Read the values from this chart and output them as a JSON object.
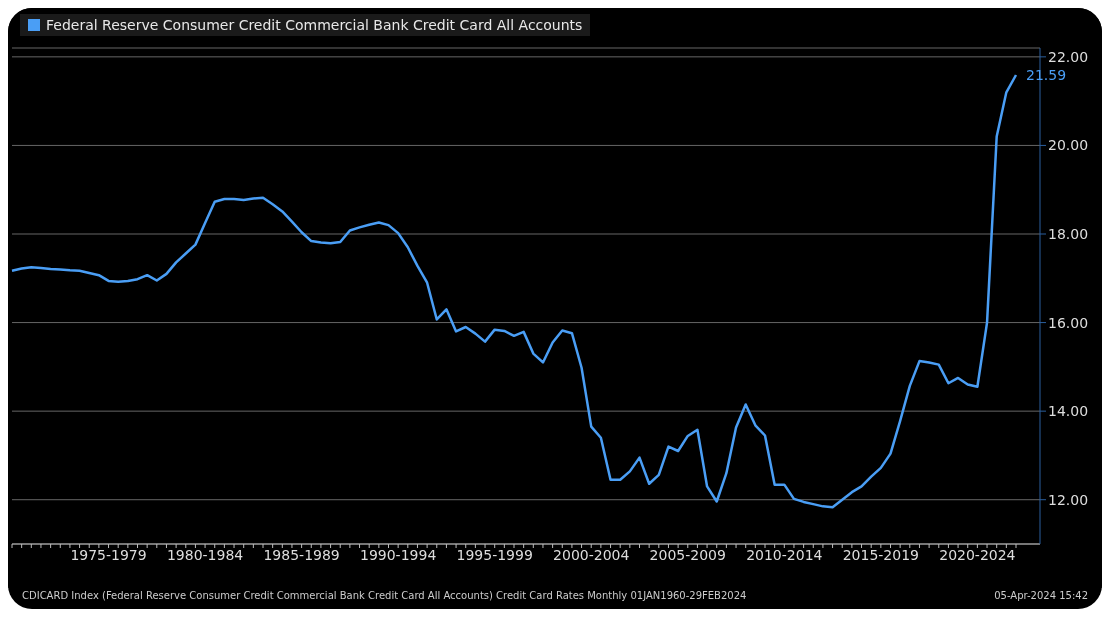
{
  "chart_data": {
    "type": "line",
    "legend": "top left",
    "grid": "y",
    "marker": "none",
    "line_style": "solid",
    "categories": [
      null,
      null,
      null,
      null,
      null,
      null,
      null,
      null,
      null,
      null,
      "1975-1979",
      null,
      null,
      null,
      null,
      null,
      null,
      null,
      null,
      null,
      "1980-1984",
      null,
      null,
      null,
      null,
      null,
      null,
      null,
      null,
      null,
      "1985-1989",
      null,
      null,
      null,
      null,
      null,
      null,
      null,
      null,
      null,
      "1990-1994",
      null,
      null,
      null,
      null,
      null,
      null,
      null,
      null,
      null,
      "1995-1999",
      null,
      null,
      null,
      null,
      null,
      null,
      null,
      null,
      null,
      "2000-2004",
      null,
      null,
      null,
      null,
      null,
      null,
      null,
      null,
      null,
      "2005-2009",
      null,
      null,
      null,
      null,
      null,
      null,
      null,
      null,
      null,
      "2010-2014",
      null,
      null,
      null,
      null,
      null,
      null,
      null,
      null,
      null,
      "2015-2019",
      null,
      null,
      null,
      null,
      null,
      null,
      null,
      null,
      null,
      "2020-2024",
      null,
      null,
      null,
      null
    ],
    "series": [
      {
        "name": "Federal Reserve Consumer Credit Commercial Bank Credit Card All Accounts",
        "color": "#4a9ef5",
        "values": [
          17.17,
          17.22,
          17.25,
          17.23,
          17.21,
          17.2,
          17.18,
          17.17,
          17.12,
          17.07,
          16.94,
          16.92,
          16.94,
          16.98,
          17.07,
          16.95,
          17.1,
          17.36,
          17.56,
          17.76,
          18.25,
          18.73,
          18.79,
          18.79,
          18.77,
          18.8,
          18.82,
          18.67,
          18.51,
          18.28,
          18.04,
          17.84,
          17.81,
          17.79,
          17.82,
          18.08,
          18.15,
          18.21,
          18.26,
          18.2,
          18.02,
          17.7,
          17.28,
          16.9,
          16.07,
          16.3,
          15.8,
          15.9,
          15.75,
          15.57,
          15.84,
          15.81,
          15.7,
          15.79,
          15.3,
          15.1,
          15.55,
          15.82,
          15.76,
          14.98,
          13.65,
          13.4,
          12.45,
          12.45,
          12.64,
          12.95,
          12.36,
          12.56,
          13.2,
          13.1,
          13.44,
          13.58,
          12.3,
          11.96,
          12.6,
          13.63,
          14.15,
          13.68,
          13.45,
          12.34,
          12.34,
          12.02,
          11.95,
          11.9,
          11.85,
          11.83,
          12.0,
          12.17,
          12.3,
          12.52,
          12.72,
          13.04,
          13.78,
          14.57,
          15.13,
          15.1,
          15.05,
          14.63,
          14.75,
          14.6,
          14.55,
          16.0,
          20.2,
          21.2,
          21.59
        ]
      }
    ],
    "ylim": [
      11,
      22.2
    ],
    "yticks": [
      {
        "value": 12,
        "label": "12.00"
      },
      {
        "value": 14,
        "label": "14.00"
      },
      {
        "value": 16,
        "label": "16.00"
      },
      {
        "value": 18,
        "label": "18.00"
      },
      {
        "value": 20,
        "label": "20.00"
      },
      {
        "value": 22,
        "label": "22.00"
      }
    ],
    "annotations": [
      "21.59",
      "CDICARD Index (Federal Reserve Consumer Credit Commercial Bank Credit Card All Accounts) Credit Card Rates  Monthly 01JAN1960-29FEB2024",
      "05-Apr-2024 15:42"
    ]
  }
}
